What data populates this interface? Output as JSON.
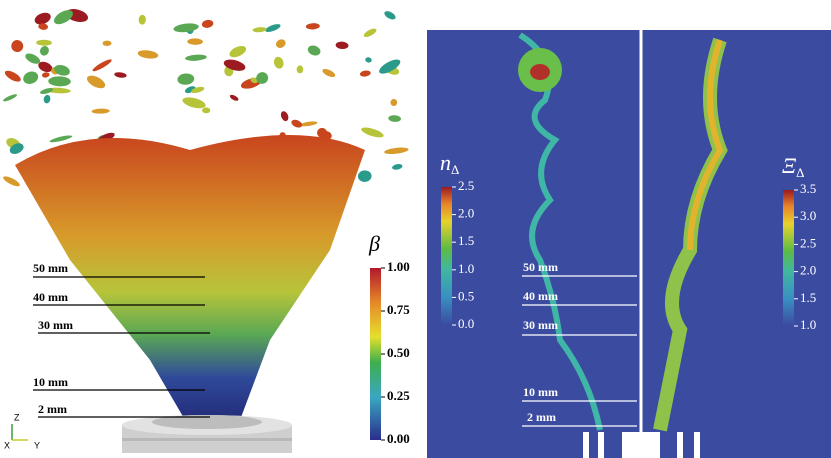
{
  "left_panel": {
    "height_labels": [
      "50 mm",
      "40 mm",
      "30 mm",
      "10 mm",
      "2 mm"
    ],
    "colorbar": {
      "title": "β",
      "ticks": [
        "1.00",
        "0.75",
        "0.50",
        "0.25",
        "0.00"
      ]
    },
    "axis_triad": [
      "Z",
      "X",
      "Y"
    ]
  },
  "middle_panel": {
    "height_labels": [
      "50 mm",
      "40 mm",
      "30 mm",
      "10 mm",
      "2 mm"
    ],
    "colorbar": {
      "title": {
        "symbol": "n",
        "subscript": "Δ"
      },
      "ticks": [
        "2.5",
        "2.0",
        "1.5",
        "1.0",
        "0.5",
        "0.0"
      ]
    }
  },
  "right_panel": {
    "colorbar": {
      "title": {
        "symbol": "Ξ",
        "subscript": "Δ"
      },
      "ticks": [
        "3.5",
        "3.0",
        "2.5",
        "2.0",
        "1.5",
        "1.0"
      ]
    }
  }
}
